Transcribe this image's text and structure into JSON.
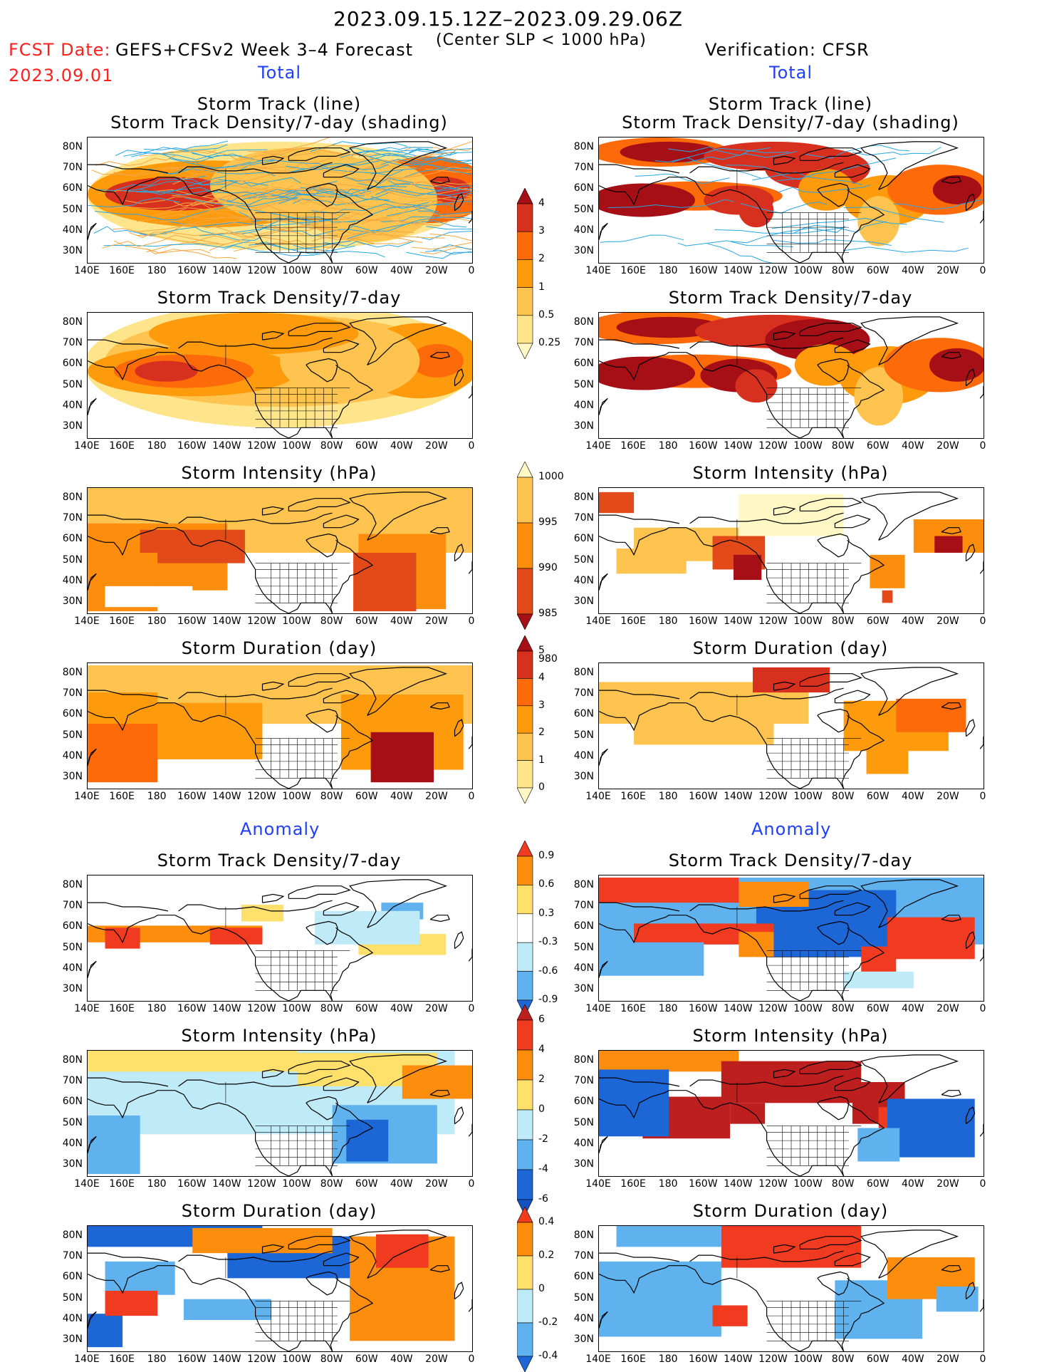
{
  "header": {
    "date_range": "2023.09.15.12Z–2023.09.29.06Z",
    "subtitle": "(Center SLP < 1000 hPa)",
    "fcst_label": "FCST Date:",
    "fcst_date": "2023.09.01",
    "forecast_title": "GEFS+CFSv2 Week 3–4 Forecast",
    "verification": "Verification: CFSR"
  },
  "sections": {
    "total_left": "Total",
    "total_right": "Total",
    "anomaly_left": "Anomaly",
    "anomaly_right": "Anomaly"
  },
  "panel_titles": {
    "track_line": "Storm Track (line)",
    "track_shading": "Storm Track Density/7-day (shading)",
    "density": "Storm Track Density/7-day",
    "intensity": "Storm Intensity (hPa)",
    "duration": "Storm Duration (day)"
  },
  "axes": {
    "lat_labels": [
      "80N",
      "70N",
      "60N",
      "50N",
      "40N",
      "30N"
    ],
    "lon_labels": [
      "140E",
      "160E",
      "180",
      "160W",
      "140W",
      "120W",
      "100W",
      "80W",
      "60W",
      "40W",
      "20W",
      "0"
    ]
  },
  "colorbars": {
    "density": {
      "labels": [
        "4",
        "3",
        "2",
        "1",
        "0.5",
        "0.25"
      ],
      "colors": [
        "#a50f15",
        "#d7301f",
        "#fc6a0a",
        "#fd9b0d",
        "#fec44f",
        "#fee48a",
        "#fff8c4"
      ]
    },
    "intensity": {
      "labels": [
        "1000",
        "995",
        "990",
        "985",
        "980"
      ],
      "colors": [
        "#fff8c4",
        "#fec44f",
        "#fd8d0d",
        "#e34a1a",
        "#a50f15"
      ]
    },
    "duration": {
      "labels": [
        "5",
        "4",
        "3",
        "2",
        "1",
        "0"
      ],
      "colors": [
        "#a50f15",
        "#d7301f",
        "#fc6a0a",
        "#fd9b0d",
        "#fec44f",
        "#fee48a",
        "#fff8c4"
      ]
    },
    "anom_density": {
      "labels": [
        "0.9",
        "0.6",
        "0.3",
        "-0.3",
        "-0.6",
        "-0.9"
      ],
      "colors": [
        "#f03b20",
        "#fd8d0d",
        "#fee06a",
        "#ffffff",
        "#bfeaf7",
        "#5fb2ee",
        "#1c66d6"
      ]
    },
    "anom_intensity": {
      "labels": [
        "6",
        "4",
        "2",
        "0",
        "-2",
        "-4",
        "-6"
      ],
      "colors": [
        "#bd1f1f",
        "#f03b20",
        "#fd8d0d",
        "#fee06a",
        "#bfeaf7",
        "#5fb2ee",
        "#1c66d6",
        "#1550c0"
      ]
    },
    "anom_duration": {
      "labels": [
        "0.4",
        "0.2",
        "0",
        "-0.2",
        "-0.4"
      ],
      "colors": [
        "#f03b20",
        "#fd8d0d",
        "#fee06a",
        "#bfeaf7",
        "#5fb2ee",
        "#1c66d6"
      ]
    }
  },
  "style": {
    "track_forecast_colors": [
      "#f5a742",
      "#2aa6e0"
    ],
    "track_observed_color": "#2aa6e0",
    "land_outline": "#000000"
  }
}
